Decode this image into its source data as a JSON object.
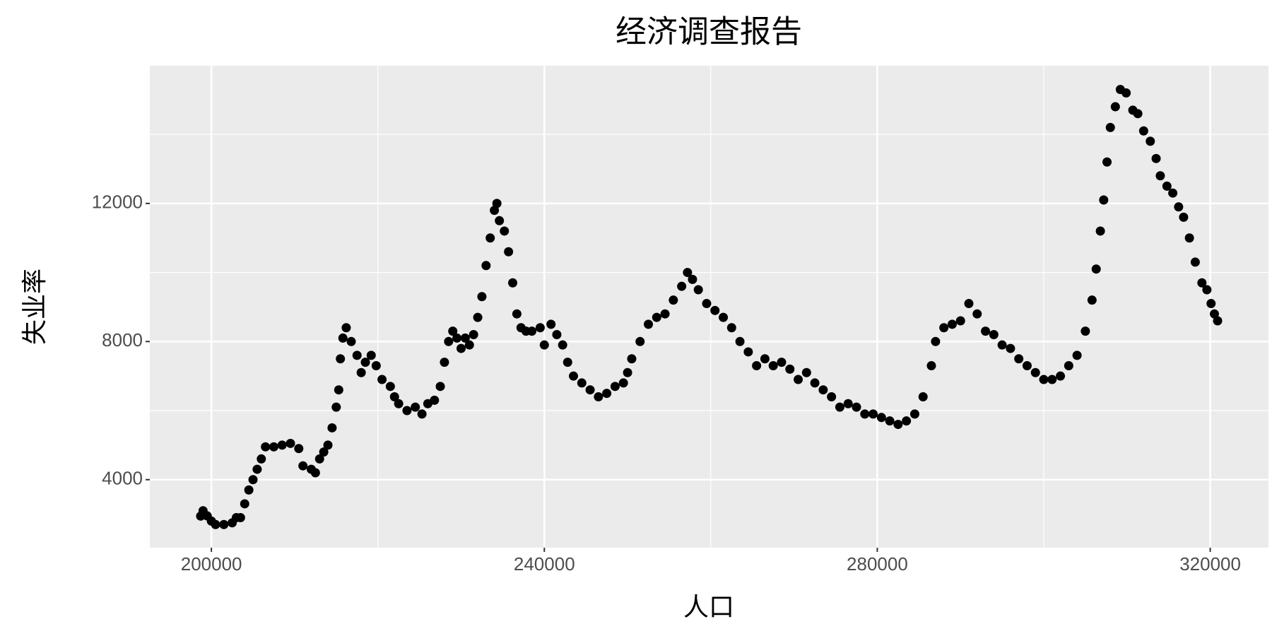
{
  "chart_data": {
    "type": "scatter",
    "title": "经济调查报告",
    "x_label": "人口",
    "y_label": "失业率",
    "color": "#000000",
    "grid": true,
    "panel_background": "#ebebeb",
    "xlim": [
      192603,
      326996
    ],
    "ylim": [
      2030,
      15988
    ],
    "xticks": [
      200000,
      240000,
      280000,
      320000
    ],
    "yticks": [
      4000,
      8000,
      12000
    ],
    "xminor_ticks": [
      220000,
      260000,
      300000
    ],
    "yminor_ticks": [
      6000,
      10000,
      14000
    ],
    "x": [
      198712,
      199000,
      199500,
      200000,
      200500,
      201500,
      202500,
      203000,
      203500,
      204000,
      204500,
      205000,
      205500,
      206000,
      206500,
      207500,
      208500,
      209500,
      210500,
      211000,
      212000,
      212500,
      213000,
      213500,
      214000,
      214500,
      215000,
      215300,
      215500,
      215800,
      216200,
      216800,
      217500,
      218000,
      218500,
      219200,
      219800,
      220500,
      221500,
      222000,
      222500,
      223500,
      224500,
      225300,
      226000,
      226800,
      227500,
      228000,
      228500,
      229000,
      229500,
      230000,
      230500,
      231000,
      231500,
      232000,
      232500,
      233000,
      233500,
      234000,
      234300,
      234600,
      235200,
      235700,
      236200,
      236700,
      237200,
      237800,
      238500,
      239500,
      240000,
      240800,
      241500,
      242200,
      242800,
      243500,
      244500,
      245500,
      246500,
      247500,
      248500,
      249500,
      250000,
      250500,
      251500,
      252500,
      253500,
      254500,
      255500,
      256500,
      257200,
      257800,
      258500,
      259500,
      260500,
      261500,
      262500,
      263500,
      264500,
      265500,
      266500,
      267500,
      268500,
      269500,
      270500,
      271500,
      272500,
      273500,
      274500,
      275500,
      276500,
      277500,
      278500,
      279500,
      280500,
      281500,
      282500,
      283500,
      284500,
      285500,
      286500,
      287000,
      288000,
      289000,
      290000,
      291000,
      292000,
      293000,
      294000,
      295000,
      296000,
      297000,
      298000,
      299000,
      300000,
      301000,
      302000,
      303000,
      304000,
      305000,
      305800,
      306300,
      306800,
      307200,
      307600,
      308000,
      308600,
      309200,
      309900,
      310700,
      311300,
      312000,
      312800,
      313500,
      314000,
      314800,
      315500,
      316200,
      316800,
      317500,
      318200,
      319000,
      319600,
      320100,
      320500,
      320887
    ],
    "y": [
      2944,
      3100,
      2950,
      2800,
      2700,
      2700,
      2750,
      2900,
      2900,
      3300,
      3700,
      4000,
      4300,
      4600,
      4950,
      4950,
      5000,
      5050,
      4900,
      4400,
      4300,
      4200,
      4600,
      4800,
      5000,
      5500,
      6100,
      6600,
      7500,
      8100,
      8400,
      8000,
      7600,
      7100,
      7400,
      7600,
      7300,
      6900,
      6700,
      6400,
      6200,
      6000,
      6100,
      5900,
      6200,
      6300,
      6700,
      7400,
      8000,
      8300,
      8100,
      7800,
      8100,
      7900,
      8200,
      8700,
      9300,
      10200,
      11000,
      11800,
      12000,
      11500,
      11200,
      10600,
      9700,
      8800,
      8400,
      8300,
      8300,
      8400,
      7900,
      8500,
      8200,
      7900,
      7400,
      7000,
      6800,
      6600,
      6400,
      6500,
      6700,
      6800,
      7100,
      7500,
      8000,
      8500,
      8700,
      8800,
      9200,
      9600,
      10000,
      9800,
      9500,
      9100,
      8900,
      8700,
      8400,
      8000,
      7700,
      7300,
      7500,
      7300,
      7400,
      7200,
      6900,
      7100,
      6800,
      6600,
      6400,
      6100,
      6200,
      6100,
      5900,
      5900,
      5800,
      5700,
      5600,
      5700,
      5900,
      6400,
      7300,
      8000,
      8400,
      8500,
      8600,
      9100,
      8800,
      8300,
      8200,
      7900,
      7800,
      7500,
      7300,
      7100,
      6900,
      6900,
      7000,
      7300,
      7600,
      8300,
      9200,
      10100,
      11200,
      12100,
      13200,
      14200,
      14800,
      15300,
      15200,
      14700,
      14600,
      14100,
      13800,
      13300,
      12800,
      12500,
      12300,
      11900,
      11600,
      11000,
      10300,
      9700,
      9500,
      9100,
      8800,
      8600
    ]
  }
}
